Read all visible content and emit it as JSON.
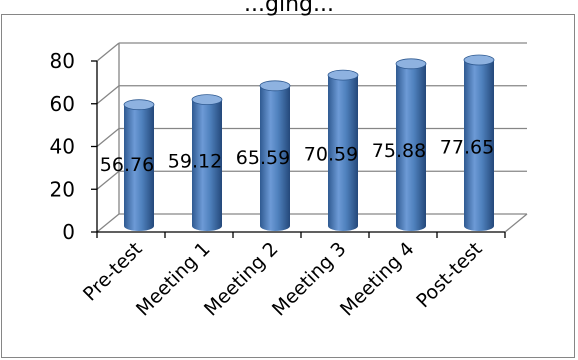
{
  "chart_data": {
    "type": "bar",
    "title": "...ging...",
    "categories": [
      "Pre-test",
      "Meeting 1",
      "Meeting 2",
      "Meeting 3",
      "Meeting 4",
      "Post-test"
    ],
    "values": [
      56.76,
      59.12,
      65.59,
      70.59,
      75.88,
      77.65
    ],
    "data_labels": [
      "56.76",
      "59.12",
      "65.59",
      "70.59",
      "75.88",
      "77.65"
    ],
    "y_ticks": [
      "0",
      "20",
      "40",
      "60",
      "80"
    ],
    "ylim": [
      0,
      80
    ],
    "grid": true,
    "legend": "none",
    "style": "3d-cylinder",
    "bar_color": "#4f81bd",
    "bar_dark": "#2f5a91",
    "bar_light": "#8eb2e0",
    "grid_color": "#868686"
  }
}
